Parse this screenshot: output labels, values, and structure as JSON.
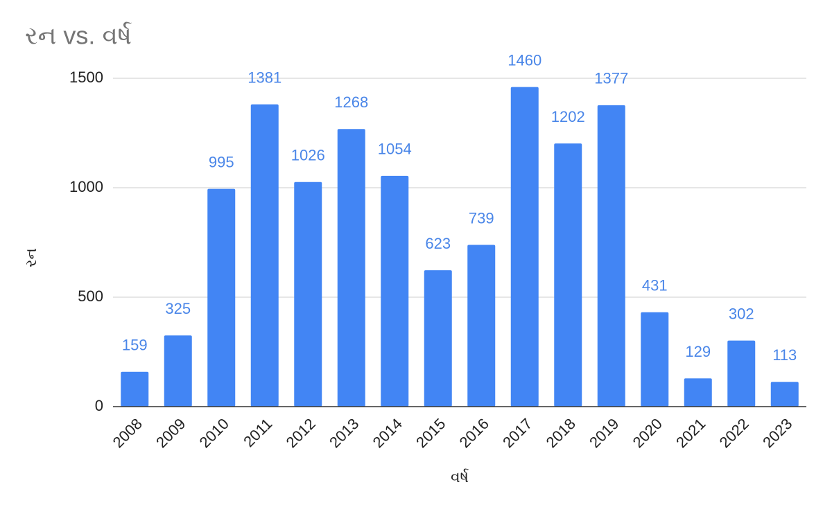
{
  "chart_data": {
    "type": "bar",
    "title": "રન vs. વર્ષ",
    "x_label": "વર્ષ",
    "y_label": "રન",
    "categories": [
      "2008",
      "2009",
      "2010",
      "2011",
      "2012",
      "2013",
      "2014",
      "2015",
      "2016",
      "2017",
      "2018",
      "2019",
      "2020",
      "2021",
      "2022",
      "2023"
    ],
    "values": [
      159,
      325,
      995,
      1381,
      1026,
      1268,
      1054,
      623,
      739,
      1460,
      1202,
      1377,
      431,
      129,
      302,
      113
    ],
    "color": "#4285f4",
    "label_color": "#4a86e8",
    "ylim": [
      0,
      1500
    ],
    "yticks": [
      0,
      500,
      1000,
      1500
    ],
    "grid": true
  }
}
